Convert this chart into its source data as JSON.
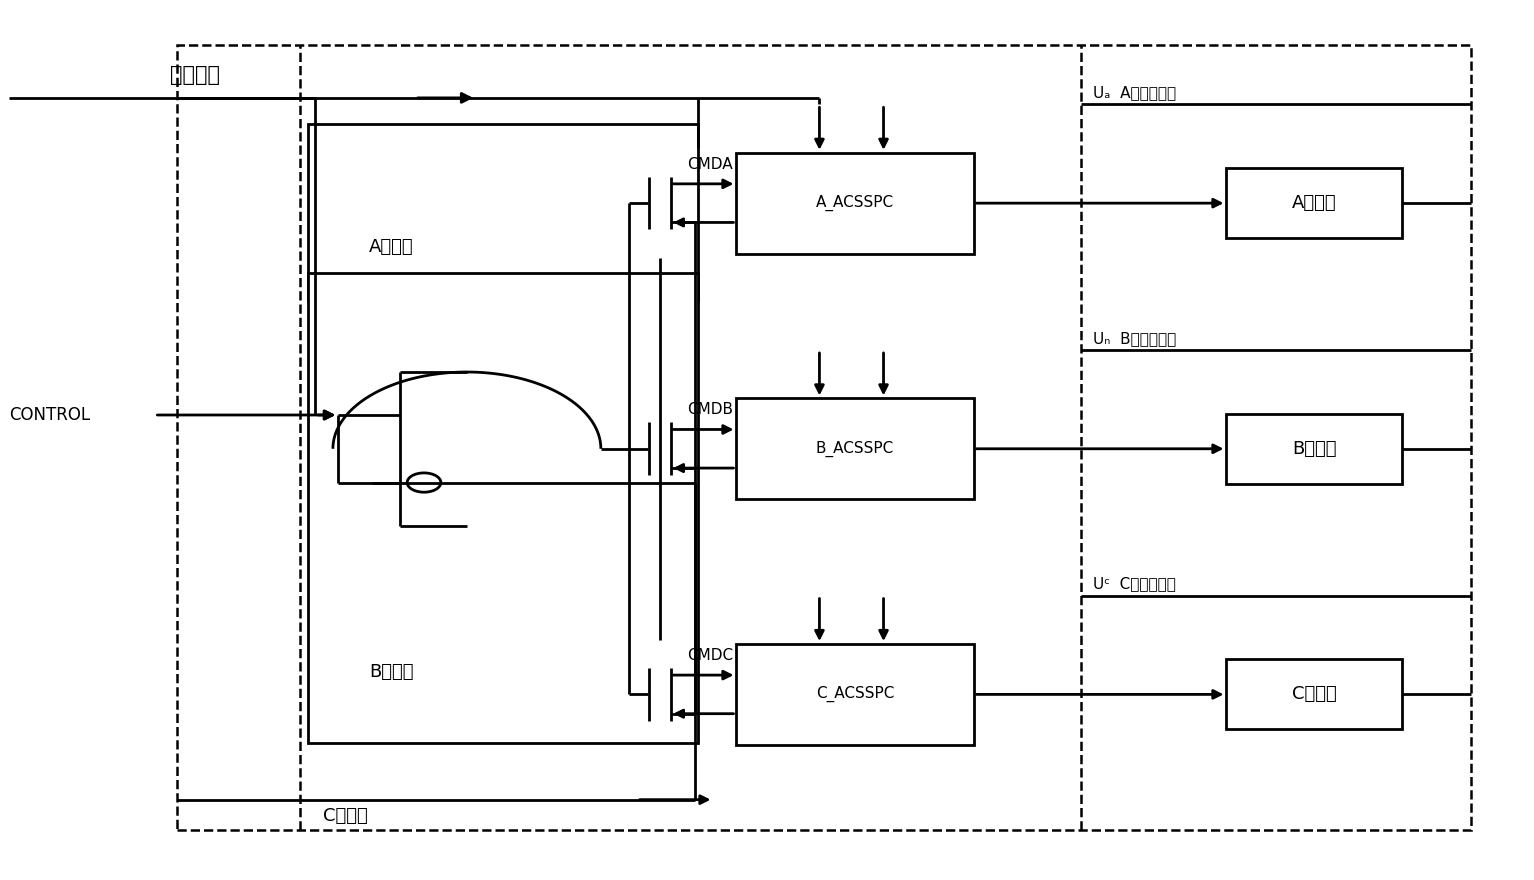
{
  "bg_color": "#ffffff",
  "figsize": [
    15.34,
    8.8
  ],
  "dpi": 100,
  "reset_label": "复位信号",
  "control_label": "CONTROL",
  "protection_labels": [
    "A相保护",
    "B相保护",
    "C相保护"
  ],
  "cmd_labels": [
    "CMDA",
    "CMDB",
    "CMDC"
  ],
  "ua_label": "Uₐ",
  "ub_label": "Uₙ",
  "uc_label": "Uᶜ",
  "power_labels": [
    "A相电源输入",
    "B相电源输入",
    "C相电源输入"
  ],
  "acsspc_labels": [
    "A_ACSSPC",
    "B_ACSSPC",
    "C_ACSSPC"
  ],
  "load_labels": [
    "A相负载",
    "B相负载",
    "C相负载"
  ],
  "lw": 2.0
}
